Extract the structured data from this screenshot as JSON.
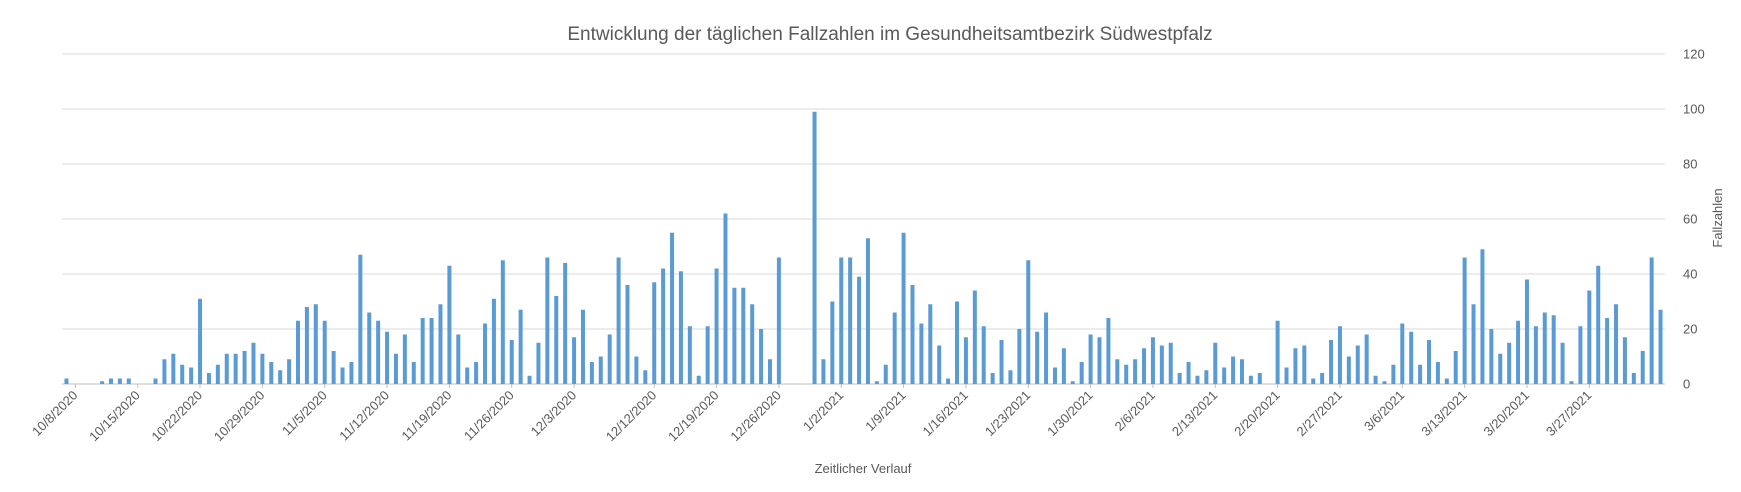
{
  "chart_data": {
    "type": "bar",
    "title": "Entwicklung der täglichen Fallzahlen im Gesundheitsamtbezirk Südwestpfalz",
    "xlabel": "Zeitlicher Verlauf",
    "ylabel": "Fallzahlen",
    "y_axis_side": "right",
    "ylim": [
      0,
      120
    ],
    "yticks": [
      0,
      20,
      40,
      60,
      80,
      100,
      120
    ],
    "grid": true,
    "legend": "none",
    "bar_color": "#5b9bd5",
    "x_start": "10/7/2020",
    "x_tick_labels": [
      "10/8/2020",
      "10/15/2020",
      "10/22/2020",
      "10/29/2020",
      "11/5/2020",
      "11/12/2020",
      "11/19/2020",
      "11/26/2020",
      "12/3/2020",
      "12/12/2020",
      "12/19/2020",
      "12/26/2020",
      "1/2/2021",
      "1/9/2021",
      "1/16/2021",
      "1/23/2021",
      "1/30/2021",
      "2/6/2021",
      "2/13/2021",
      "2/20/2021",
      "2/27/2021",
      "3/6/2021",
      "3/13/2021",
      "3/20/2021",
      "3/27/2021"
    ],
    "x_tick_indices": [
      1,
      8,
      15,
      22,
      29,
      36,
      43,
      50,
      57,
      66,
      73,
      80,
      87,
      94,
      101,
      108,
      115,
      122,
      129,
      136,
      143,
      150,
      157,
      164,
      171
    ],
    "values": [
      2,
      0,
      0,
      0,
      1,
      2,
      2,
      2,
      0,
      0,
      2,
      9,
      11,
      7,
      6,
      31,
      4,
      7,
      11,
      11,
      12,
      15,
      11,
      8,
      5,
      9,
      23,
      28,
      29,
      23,
      12,
      6,
      8,
      47,
      26,
      23,
      19,
      11,
      18,
      8,
      24,
      24,
      29,
      43,
      18,
      6,
      8,
      22,
      31,
      45,
      16,
      27,
      3,
      15,
      46,
      32,
      44,
      17,
      27,
      8,
      10,
      18,
      46,
      36,
      10,
      5,
      37,
      42,
      55,
      41,
      21,
      3,
      21,
      42,
      62,
      35,
      35,
      29,
      20,
      9,
      46,
      0,
      0,
      0,
      99,
      9,
      30,
      46,
      46,
      39,
      53,
      1,
      7,
      26,
      55,
      36,
      22,
      29,
      14,
      2,
      30,
      17,
      34,
      21,
      4,
      16,
      5,
      20,
      45,
      19,
      26,
      6,
      13,
      1,
      8,
      18,
      17,
      24,
      9,
      7,
      9,
      13,
      17,
      14,
      15,
      4,
      8,
      3,
      5,
      15,
      6,
      10,
      9,
      3,
      4,
      0,
      23,
      6,
      13,
      14,
      2,
      4,
      16,
      21,
      10,
      14,
      18,
      3,
      1,
      7,
      22,
      19,
      7,
      16,
      8,
      2,
      12,
      46,
      29,
      49,
      20,
      11,
      15,
      23,
      38,
      21,
      26,
      25,
      15,
      1,
      21,
      34,
      43,
      24,
      29,
      17,
      4,
      12,
      46,
      27
    ]
  }
}
